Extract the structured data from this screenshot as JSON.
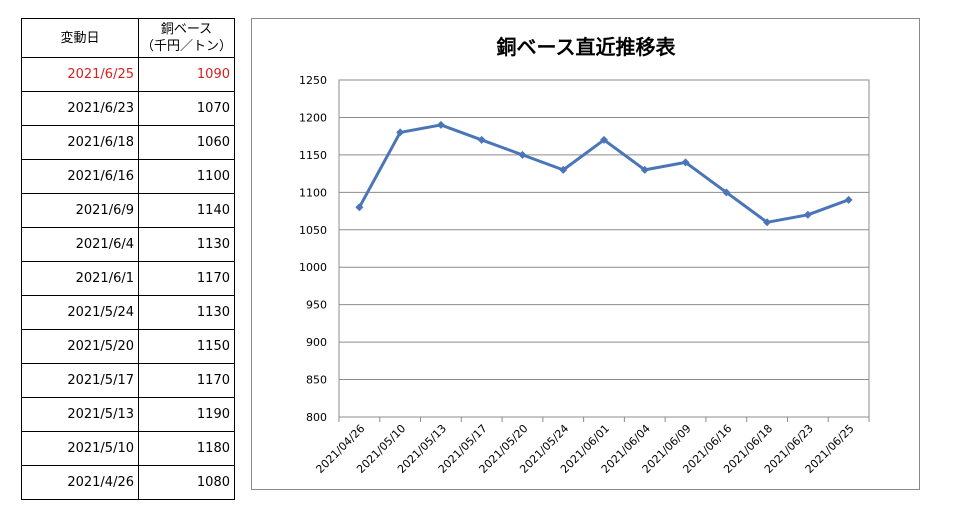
{
  "table": {
    "header": {
      "date": "変動日",
      "price_line1": "銅ベース",
      "price_line2": "（千円／トン）"
    },
    "rows": [
      {
        "date": "2021/6/25",
        "price": "1090"
      },
      {
        "date": "2021/6/23",
        "price": "1070"
      },
      {
        "date": "2021/6/18",
        "price": "1060"
      },
      {
        "date": "2021/6/16",
        "price": "1100"
      },
      {
        "date": "2021/6/9",
        "price": "1140"
      },
      {
        "date": "2021/6/4",
        "price": "1130"
      },
      {
        "date": "2021/6/1",
        "price": "1170"
      },
      {
        "date": "2021/5/24",
        "price": "1130"
      },
      {
        "date": "2021/5/20",
        "price": "1150"
      },
      {
        "date": "2021/5/17",
        "price": "1170"
      },
      {
        "date": "2021/5/13",
        "price": "1190"
      },
      {
        "date": "2021/5/10",
        "price": "1180"
      },
      {
        "date": "2021/4/26",
        "price": "1080"
      }
    ],
    "latest_color": "#d42020"
  },
  "chart_data": {
    "type": "line",
    "title": "銅ベース直近推移表",
    "xlabel": "",
    "ylabel": "",
    "categories": [
      "2021/04/26",
      "2021/05/10",
      "2021/05/13",
      "2021/05/17",
      "2021/05/20",
      "2021/05/24",
      "2021/06/01",
      "2021/06/04",
      "2021/06/09",
      "2021/06/16",
      "2021/06/18",
      "2021/06/23",
      "2021/06/25"
    ],
    "series": [
      {
        "values": [
          1080,
          1180,
          1190,
          1170,
          1150,
          1130,
          1170,
          1130,
          1140,
          1100,
          1060,
          1070,
          1090
        ],
        "color": "#4a76b8"
      }
    ],
    "ylim": [
      800,
      1250
    ],
    "yticks": [
      800,
      850,
      900,
      950,
      1000,
      1050,
      1100,
      1150,
      1200,
      1250
    ],
    "grid": true,
    "gridline_color": "#8c8c8c",
    "legend": "none"
  }
}
